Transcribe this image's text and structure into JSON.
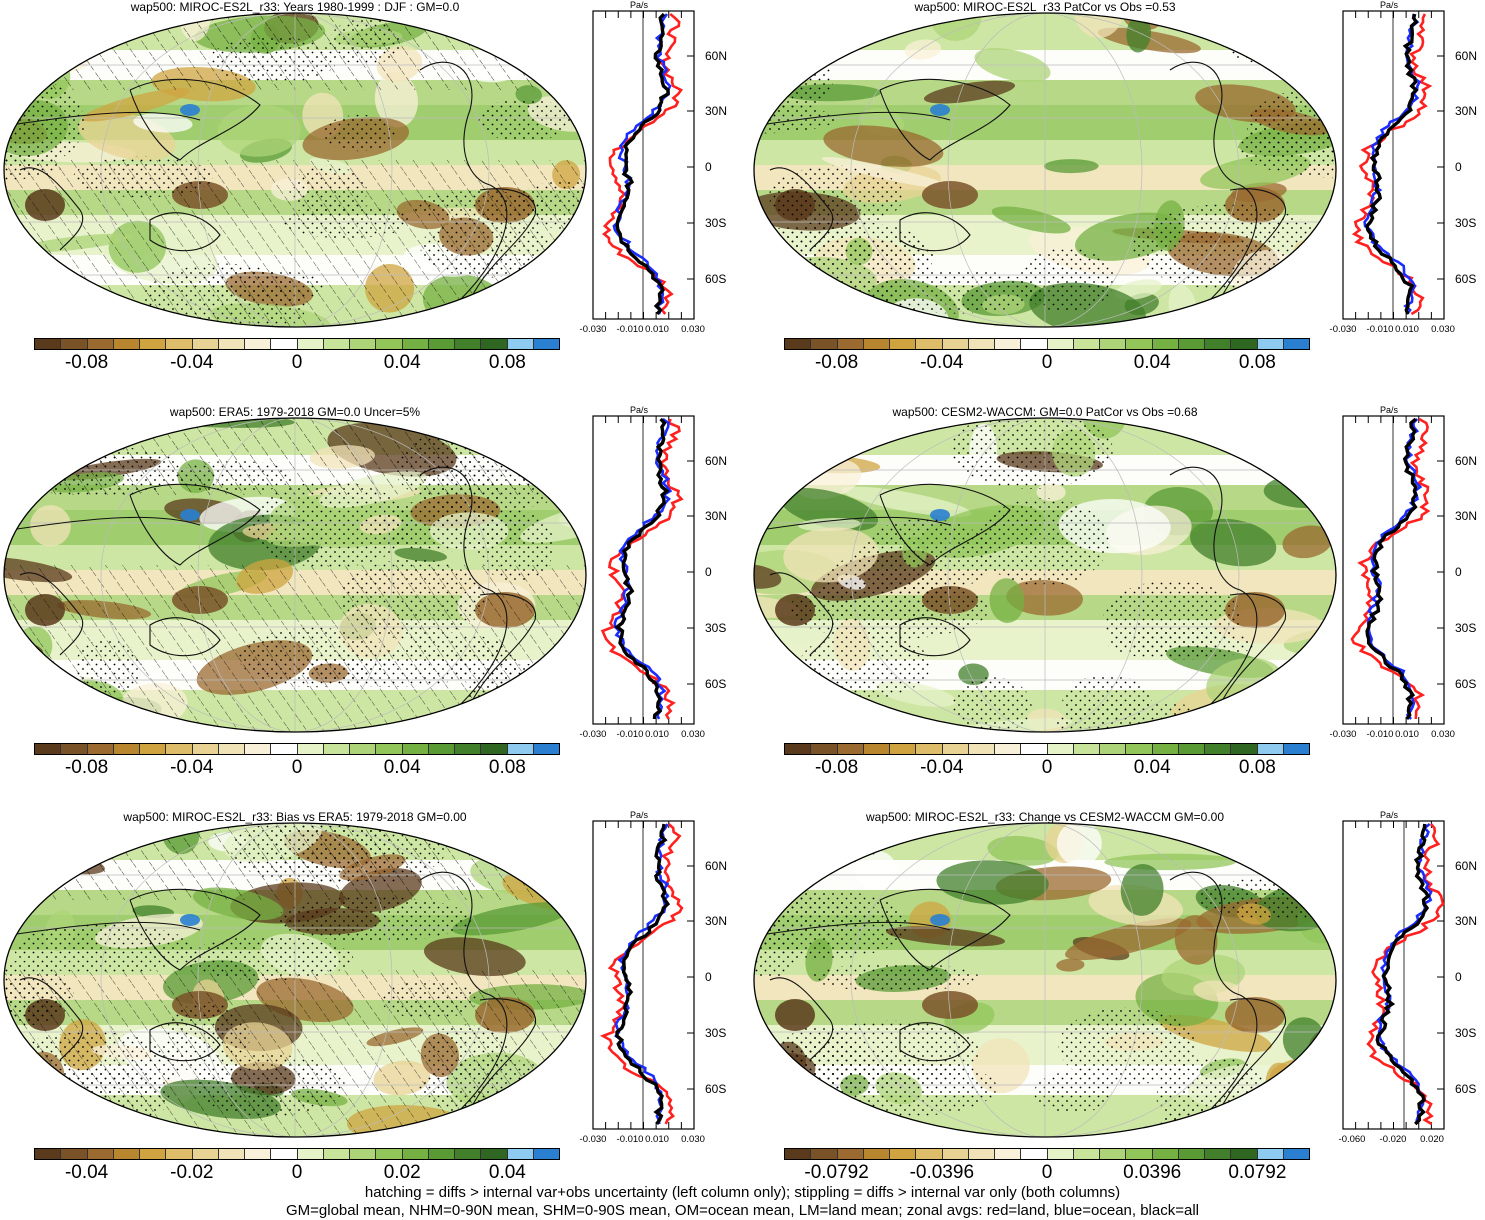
{
  "colors": [
    "#5a3a1c",
    "#7a5228",
    "#9a6a30",
    "#b8862e",
    "#cfa440",
    "#ddbd6a",
    "#e8d394",
    "#f1e3b8",
    "#f8f0d8",
    "#ffffff",
    "#e6f2c8",
    "#c8e39a",
    "#add478",
    "#92c55a",
    "#75b043",
    "#5a9a35",
    "#427f2b",
    "#2f6622",
    "#8fcaf0",
    "#2a7fd0"
  ],
  "lat_labels": [
    "60N",
    "30N",
    "0",
    "30S",
    "60S"
  ],
  "zonal_unit": "Pa/s",
  "panels": [
    {
      "title": "wap500: MIROC-ES2L_r33: Years 1980-1999 : DJF : GM=0.0",
      "cb_labels": [
        "-0.08",
        "-0.04",
        "0",
        "0.04",
        "0.08"
      ],
      "zx_labels": [
        "-0.030",
        "-0.010",
        "0.010",
        "0.030"
      ]
    },
    {
      "title": "wap500: MIROC-ES2L_r33 PatCor vs Obs =0.53",
      "cb_labels": [
        "-0.08",
        "-0.04",
        "0",
        "0.04",
        "0.08"
      ],
      "zx_labels": [
        "-0.030",
        "-0.010",
        "0.010",
        "0.030"
      ]
    },
    {
      "title": "wap500: ERA5: 1979-2018 GM=0.0 Uncer=5%",
      "cb_labels": [
        "-0.08",
        "-0.04",
        "0",
        "0.04",
        "0.08"
      ],
      "zx_labels": [
        "-0.030",
        "-0.010",
        "0.010",
        "0.030"
      ]
    },
    {
      "title": "wap500: CESM2-WACCM: GM=0.0 PatCor vs Obs =0.68",
      "cb_labels": [
        "-0.08",
        "-0.04",
        "0",
        "0.04",
        "0.08"
      ],
      "zx_labels": [
        "-0.030",
        "-0.010",
        "0.010",
        "0.030"
      ]
    },
    {
      "title": "wap500: MIROC-ES2L_r33: Bias vs ERA5: 1979-2018 GM=0.00",
      "cb_labels": [
        "-0.04",
        "-0.02",
        "0",
        "0.02",
        "0.04"
      ],
      "zx_labels": [
        "-0.030",
        "-0.010",
        "0.010",
        "0.030"
      ]
    },
    {
      "title": "wap500: MIROC-ES2L_r33: Change vs CESM2-WACCM GM=0.00",
      "cb_labels": [
        "-0.0792",
        "-0.0396",
        "0",
        "0.0396",
        "0.0792"
      ],
      "zx_labels": [
        "-0.060",
        "-0.020",
        "0.020"
      ]
    }
  ],
  "footer": {
    "line1": "hatching = diffs > internal var+obs uncertainty (left column only); stippling = diffs > internal var only (both columns)",
    "line2": "GM=global mean, NHM=0-90N mean, SHM=0-90S mean, OM=ocean mean, LM=land mean; zonal avgs: red=land, blue=ocean, black=all"
  }
}
